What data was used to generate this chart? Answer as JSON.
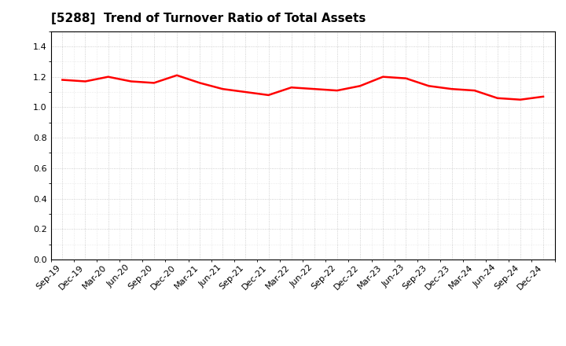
{
  "title": "[5288]  Trend of Turnover Ratio of Total Assets",
  "x_labels": [
    "Sep-19",
    "Dec-19",
    "Mar-20",
    "Jun-20",
    "Sep-20",
    "Dec-20",
    "Mar-21",
    "Jun-21",
    "Sep-21",
    "Dec-21",
    "Mar-22",
    "Jun-22",
    "Sep-22",
    "Dec-22",
    "Mar-23",
    "Jun-23",
    "Sep-23",
    "Dec-23",
    "Mar-24",
    "Jun-24",
    "Sep-24",
    "Dec-24"
  ],
  "y_values": [
    1.18,
    1.17,
    1.2,
    1.17,
    1.16,
    1.21,
    1.16,
    1.12,
    1.1,
    1.08,
    1.13,
    1.12,
    1.11,
    1.14,
    1.2,
    1.19,
    1.14,
    1.12,
    1.11,
    1.06,
    1.05,
    1.07
  ],
  "line_color": "#FF0000",
  "line_width": 1.8,
  "ylim": [
    0.0,
    1.5
  ],
  "yticks": [
    0.0,
    0.2,
    0.4,
    0.6,
    0.8,
    1.0,
    1.2,
    1.4
  ],
  "background_color": "#ffffff",
  "plot_bg_color": "#ffffff",
  "grid_color": "#bbbbbb",
  "title_fontsize": 11,
  "tick_fontsize": 8,
  "title_weight": "bold"
}
